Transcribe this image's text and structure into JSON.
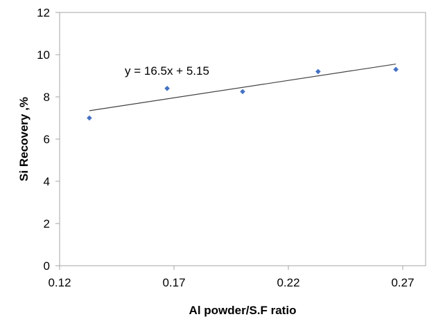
{
  "chart_data": {
    "type": "scatter",
    "xlabel": "Al powder/S.F ratio",
    "ylabel": "Si Recovery ,%",
    "xlim": [
      0.12,
      0.28
    ],
    "ylim": [
      0,
      12
    ],
    "x_ticks": [
      "0.12",
      "0.17",
      "0.22",
      "0.27"
    ],
    "x_tick_values": [
      0.12,
      0.17,
      0.22,
      0.27
    ],
    "y_ticks": [
      "0",
      "2",
      "4",
      "6",
      "8",
      "10",
      "12"
    ],
    "y_tick_values": [
      0,
      2,
      4,
      6,
      8,
      10,
      12
    ],
    "grid": false,
    "series": [
      {
        "x": [
          0.133,
          0.167,
          0.2,
          0.233,
          0.267
        ],
        "y": [
          7.0,
          8.4,
          8.25,
          9.2,
          9.3
        ],
        "color": "#4472C4",
        "marker": "diamond"
      }
    ],
    "trendline": {
      "equation": "y = 16.5x + 5.15",
      "slope": 16.5,
      "intercept": 5.15,
      "x_range": [
        0.133,
        0.267
      ],
      "color": "#404040"
    }
  }
}
